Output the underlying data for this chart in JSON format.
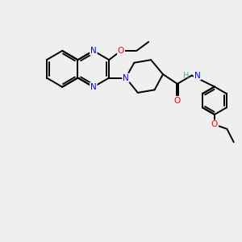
{
  "background_color": "#efefef",
  "bond_color": "#000000",
  "atom_colors": {
    "N": "#0000ff",
    "O": "#ff0000",
    "H": "#5f9ea0",
    "C": "#000000"
  },
  "bond_width": 1.4,
  "figsize": [
    3.0,
    3.0
  ],
  "dpi": 100,
  "xlim": [
    0,
    10
  ],
  "ylim": [
    0,
    10
  ]
}
